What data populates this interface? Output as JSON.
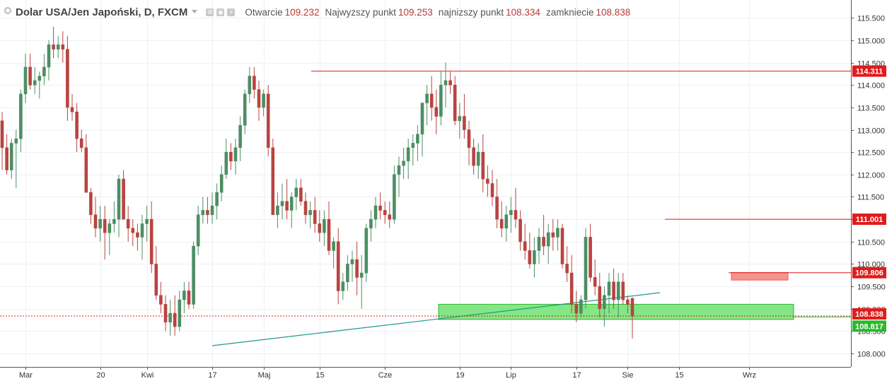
{
  "legend": {
    "title": "Dolar USA/Jen Japoński, D, FXCM",
    "open_label": "Otwarcie",
    "open_value": "109.232",
    "high_label": "Najwyzszy punkt",
    "high_value": "109.253",
    "low_label": "najnizszy punkt",
    "low_value": "108.334",
    "close_label": "zamkniecie",
    "close_value": "108.838"
  },
  "chart_data": {
    "type": "candlestick",
    "symbol": "Dolar USA/Jen Japoński, D, FXCM",
    "ylim": [
      107.7,
      115.9
    ],
    "y_ticks": [
      108.0,
      108.5,
      109.0,
      109.5,
      110.0,
      110.5,
      111.0,
      111.5,
      112.0,
      112.5,
      113.0,
      113.5,
      114.0,
      114.5,
      115.0,
      115.5
    ],
    "y_tick_labels": [
      "108.000",
      "108.500",
      "109.000",
      "109.500",
      "110.000",
      "110.500",
      "111.000",
      "111.500",
      "112.000",
      "112.500",
      "113.000",
      "113.500",
      "114.000",
      "114.500",
      "115.000",
      "115.500"
    ],
    "x_tick_labels": [
      "Mar",
      "20",
      "Kwi",
      "17",
      "Maj",
      "15",
      "Cze",
      "19",
      "Lip",
      "17",
      "Sie",
      "15",
      "Wrz"
    ],
    "x_tick_bar_index": [
      5,
      21,
      31,
      45,
      56,
      68,
      82,
      98,
      109,
      123,
      134,
      145,
      160
    ],
    "grid": true,
    "up_color": "#4d8e64",
    "down_color": "#b84440",
    "candles_ohlc": [
      [
        113.2,
        113.4,
        112.1,
        112.6
      ],
      [
        112.6,
        112.9,
        112.0,
        112.1
      ],
      [
        112.1,
        112.8,
        111.9,
        112.7
      ],
      [
        112.7,
        113.0,
        111.7,
        112.8
      ],
      [
        112.8,
        113.9,
        112.5,
        113.8
      ],
      [
        113.8,
        114.7,
        113.6,
        114.4
      ],
      [
        114.4,
        114.7,
        113.9,
        114.0
      ],
      [
        114.0,
        114.4,
        113.8,
        114.1
      ],
      [
        114.1,
        114.3,
        113.7,
        114.2
      ],
      [
        114.2,
        114.7,
        114.0,
        114.4
      ],
      [
        114.4,
        115.0,
        114.1,
        114.9
      ],
      [
        114.9,
        115.3,
        114.6,
        114.8
      ],
      [
        114.8,
        115.1,
        114.6,
        114.9
      ],
      [
        114.9,
        115.2,
        114.5,
        114.8
      ],
      [
        114.8,
        115.1,
        113.2,
        113.5
      ],
      [
        113.5,
        113.8,
        113.2,
        113.4
      ],
      [
        113.4,
        113.6,
        112.5,
        112.8
      ],
      [
        112.8,
        113.0,
        112.5,
        112.6
      ],
      [
        112.6,
        112.9,
        111.7,
        111.6
      ],
      [
        111.6,
        111.7,
        110.9,
        111.1
      ],
      [
        111.1,
        111.5,
        110.6,
        110.8
      ],
      [
        110.8,
        111.3,
        110.5,
        111.0
      ],
      [
        111.0,
        111.3,
        110.1,
        110.7
      ],
      [
        110.7,
        111.0,
        110.2,
        110.9
      ],
      [
        110.9,
        111.4,
        110.7,
        111.0
      ],
      [
        111.0,
        112.0,
        110.6,
        111.9
      ],
      [
        111.9,
        112.1,
        111.3,
        111.0
      ],
      [
        111.0,
        111.3,
        110.5,
        110.8
      ],
      [
        110.8,
        111.0,
        110.4,
        110.7
      ],
      [
        110.7,
        110.9,
        110.3,
        110.6
      ],
      [
        110.6,
        111.1,
        110.1,
        110.9
      ],
      [
        110.9,
        111.3,
        110.5,
        111.0
      ],
      [
        111.0,
        111.4,
        109.8,
        110.0
      ],
      [
        110.0,
        110.4,
        109.2,
        109.3
      ],
      [
        109.3,
        109.6,
        108.9,
        109.1
      ],
      [
        109.1,
        109.3,
        108.5,
        108.7
      ],
      [
        108.7,
        109.2,
        108.4,
        108.9
      ],
      [
        108.9,
        109.3,
        108.4,
        108.6
      ],
      [
        108.6,
        109.4,
        108.5,
        109.2
      ],
      [
        109.2,
        109.6,
        108.9,
        109.4
      ],
      [
        109.4,
        109.6,
        109.0,
        109.1
      ],
      [
        109.1,
        110.5,
        109.0,
        110.4
      ],
      [
        110.4,
        111.3,
        110.2,
        111.1
      ],
      [
        111.1,
        111.5,
        110.9,
        111.2
      ],
      [
        111.2,
        111.5,
        110.9,
        111.1
      ],
      [
        111.1,
        111.6,
        110.9,
        111.3
      ],
      [
        111.3,
        111.8,
        111.0,
        111.6
      ],
      [
        111.6,
        112.2,
        111.4,
        112.0
      ],
      [
        112.0,
        112.8,
        111.9,
        112.5
      ],
      [
        112.5,
        112.7,
        112.1,
        112.3
      ],
      [
        112.3,
        112.8,
        112.0,
        112.6
      ],
      [
        112.6,
        113.3,
        112.3,
        113.1
      ],
      [
        113.1,
        113.9,
        112.9,
        113.8
      ],
      [
        113.8,
        114.4,
        113.6,
        114.2
      ],
      [
        114.2,
        114.4,
        113.7,
        113.9
      ],
      [
        113.9,
        114.1,
        113.2,
        113.5
      ],
      [
        113.5,
        113.9,
        113.3,
        113.8
      ],
      [
        113.8,
        114.0,
        112.4,
        112.6
      ],
      [
        112.6,
        112.8,
        111.7,
        111.1
      ],
      [
        111.1,
        111.6,
        110.8,
        111.3
      ],
      [
        111.3,
        111.8,
        111.0,
        111.4
      ],
      [
        111.4,
        111.9,
        111.0,
        111.2
      ],
      [
        111.2,
        111.6,
        110.8,
        111.5
      ],
      [
        111.5,
        111.9,
        111.2,
        111.7
      ],
      [
        111.7,
        111.9,
        111.3,
        111.4
      ],
      [
        111.4,
        111.6,
        110.9,
        111.1
      ],
      [
        111.1,
        111.4,
        110.8,
        111.2
      ],
      [
        111.2,
        111.5,
        110.7,
        110.9
      ],
      [
        110.9,
        111.2,
        110.5,
        110.7
      ],
      [
        110.7,
        111.2,
        110.4,
        111.0
      ],
      [
        111.0,
        111.4,
        110.2,
        110.3
      ],
      [
        110.3,
        110.6,
        109.9,
        110.5
      ],
      [
        110.5,
        110.8,
        109.1,
        109.4
      ],
      [
        109.4,
        109.8,
        109.2,
        109.6
      ],
      [
        109.6,
        110.2,
        109.4,
        110.0
      ],
      [
        110.0,
        110.3,
        109.6,
        110.1
      ],
      [
        110.1,
        110.5,
        109.3,
        109.7
      ],
      [
        109.7,
        110.2,
        109.0,
        109.8
      ],
      [
        109.8,
        110.9,
        109.6,
        110.8
      ],
      [
        110.8,
        111.2,
        110.5,
        111.0
      ],
      [
        111.0,
        111.5,
        110.8,
        111.3
      ],
      [
        111.3,
        111.6,
        111.0,
        111.2
      ],
      [
        111.2,
        111.4,
        110.9,
        111.1
      ],
      [
        111.1,
        111.4,
        110.8,
        111.0
      ],
      [
        111.0,
        112.2,
        110.9,
        112.0
      ],
      [
        112.0,
        112.4,
        111.5,
        112.2
      ],
      [
        112.2,
        112.6,
        111.9,
        112.3
      ],
      [
        112.3,
        112.8,
        111.9,
        112.6
      ],
      [
        112.6,
        112.9,
        112.2,
        112.7
      ],
      [
        112.7,
        113.1,
        112.3,
        112.9
      ],
      [
        112.9,
        113.5,
        112.4,
        113.6
      ],
      [
        113.6,
        114.0,
        113.1,
        113.8
      ],
      [
        113.8,
        114.2,
        113.2,
        113.5
      ],
      [
        113.5,
        113.9,
        112.9,
        113.3
      ],
      [
        113.3,
        114.3,
        113.1,
        114.0
      ],
      [
        114.0,
        114.5,
        113.5,
        114.1
      ],
      [
        114.1,
        114.3,
        113.8,
        114.0
      ],
      [
        114.0,
        114.2,
        113.1,
        113.2
      ],
      [
        113.2,
        113.6,
        112.8,
        113.3
      ],
      [
        113.3,
        113.8,
        112.8,
        113.0
      ],
      [
        113.0,
        113.2,
        112.2,
        112.6
      ],
      [
        112.6,
        112.8,
        112.0,
        112.2
      ],
      [
        112.2,
        112.7,
        111.9,
        112.5
      ],
      [
        112.5,
        112.9,
        111.6,
        111.9
      ],
      [
        111.9,
        112.2,
        111.5,
        111.8
      ],
      [
        111.8,
        112.1,
        111.3,
        111.5
      ],
      [
        111.5,
        111.9,
        110.8,
        111.0
      ],
      [
        111.0,
        111.4,
        110.6,
        110.8
      ],
      [
        110.8,
        111.3,
        110.5,
        111.1
      ],
      [
        111.1,
        111.5,
        110.7,
        111.2
      ],
      [
        111.2,
        111.7,
        110.8,
        111.0
      ],
      [
        111.0,
        111.2,
        110.3,
        110.5
      ],
      [
        110.5,
        110.9,
        110.1,
        110.3
      ],
      [
        110.3,
        110.7,
        109.9,
        110.0
      ],
      [
        110.0,
        110.6,
        109.7,
        110.3
      ],
      [
        110.3,
        110.8,
        110.0,
        110.6
      ],
      [
        110.6,
        111.1,
        110.2,
        110.4
      ],
      [
        110.4,
        110.9,
        110.0,
        110.7
      ],
      [
        110.7,
        111.0,
        110.3,
        110.6
      ],
      [
        110.6,
        111.0,
        110.3,
        110.8
      ],
      [
        110.8,
        110.9,
        109.9,
        110.0
      ],
      [
        110.0,
        110.4,
        109.6,
        109.8
      ],
      [
        109.8,
        110.2,
        108.9,
        109.1
      ],
      [
        109.1,
        109.4,
        108.7,
        108.9
      ],
      [
        108.9,
        109.3,
        108.8,
        109.2
      ],
      [
        109.2,
        110.8,
        109.0,
        110.6
      ],
      [
        110.6,
        110.9,
        109.6,
        109.7
      ],
      [
        109.7,
        110.1,
        109.3,
        109.5
      ],
      [
        109.5,
        109.8,
        108.8,
        109.0
      ],
      [
        109.0,
        109.5,
        108.6,
        109.3
      ],
      [
        109.3,
        109.8,
        108.9,
        109.6
      ],
      [
        109.6,
        109.9,
        109.0,
        109.2
      ],
      [
        109.2,
        109.8,
        108.8,
        109.6
      ],
      [
        109.6,
        109.8,
        109.1,
        109.2
      ],
      [
        109.2,
        109.3,
        108.9,
        109.1
      ],
      [
        109.232,
        109.253,
        108.334,
        108.838
      ]
    ],
    "horizontal_levels": [
      {
        "value": 114.311,
        "label": "114.311",
        "color": "#e01b1b"
      },
      {
        "value": 111.001,
        "label": "111.001",
        "color": "#e01b1b"
      },
      {
        "value": 109.806,
        "label": "109.806",
        "color": "#e01b1b"
      },
      {
        "value": 108.838,
        "label": "108.838",
        "color": "#e01b1b"
      },
      {
        "value": 108.817,
        "label": "108.817",
        "color": "#2db82d"
      }
    ],
    "zones": [
      {
        "from": 109.64,
        "to": 109.81,
        "color": "#f4817a"
      },
      {
        "from": 108.76,
        "to": 109.1,
        "color": "#6ee26e"
      }
    ],
    "trendline": {
      "color": "#1c9a8c"
    }
  }
}
